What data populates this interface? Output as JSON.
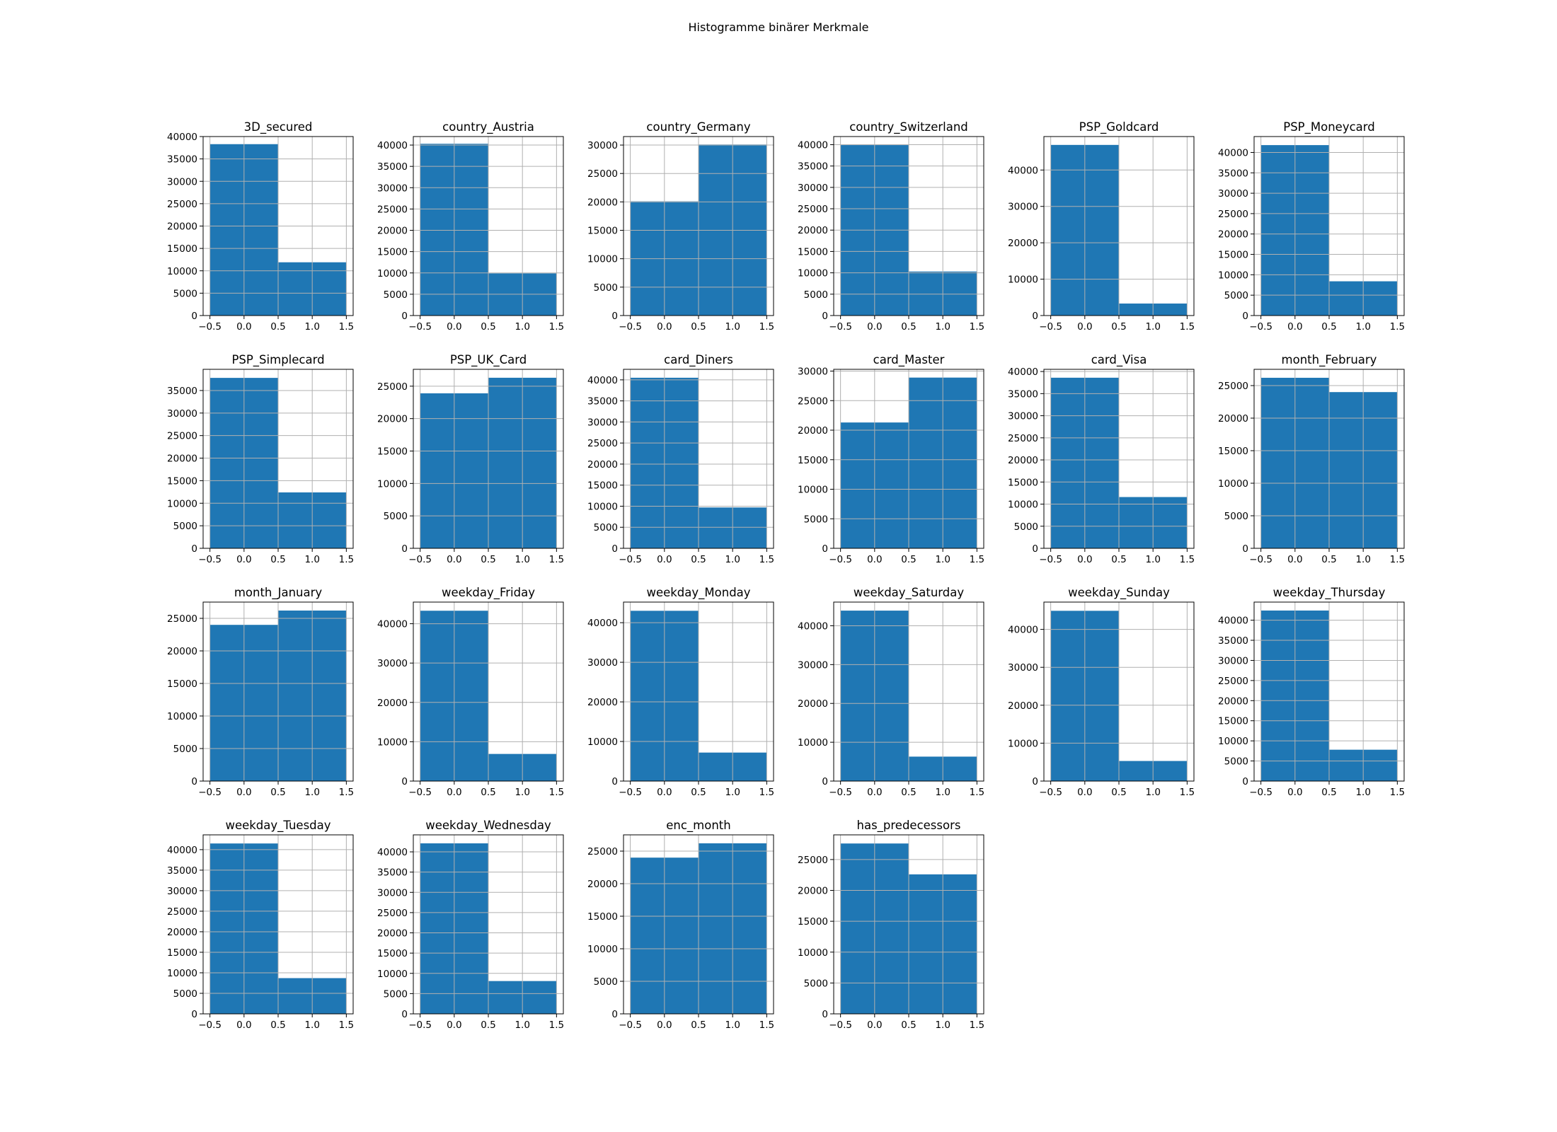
{
  "figure_title": "Histogramme binärer Merkmale",
  "colors": {
    "bar": "#1f77b4",
    "grid": "#b0b0b0",
    "axes": "#000000"
  },
  "chart_data": [
    {
      "type": "bar",
      "title": "3D_secured",
      "bins": [
        [
          -0.5,
          0.5
        ],
        [
          0.5,
          1.5
        ]
      ],
      "values": [
        38300,
        11900
      ],
      "xlim": [
        -0.6,
        1.6
      ],
      "ylim": [
        0,
        40000
      ],
      "xticks": [
        -0.5,
        0.0,
        0.5,
        1.0,
        1.5
      ],
      "xtick_labels": [
        "−0.5",
        "0.0",
        "0.5",
        "1.0",
        "1.5"
      ],
      "yticks": [
        0,
        5000,
        10000,
        15000,
        20000,
        25000,
        30000,
        35000,
        40000
      ],
      "grid": true
    },
    {
      "type": "bar",
      "title": "country_Austria",
      "bins": [
        [
          -0.5,
          0.5
        ],
        [
          0.5,
          1.5
        ]
      ],
      "values": [
        40300,
        9900
      ],
      "xlim": [
        -0.6,
        1.6
      ],
      "ylim": [
        0,
        42000
      ],
      "xticks": [
        -0.5,
        0.0,
        0.5,
        1.0,
        1.5
      ],
      "xtick_labels": [
        "−0.5",
        "0.0",
        "0.5",
        "1.0",
        "1.5"
      ],
      "yticks": [
        0,
        5000,
        10000,
        15000,
        20000,
        25000,
        30000,
        35000,
        40000
      ],
      "grid": true
    },
    {
      "type": "bar",
      "title": "country_Germany",
      "bins": [
        [
          -0.5,
          0.5
        ],
        [
          0.5,
          1.5
        ]
      ],
      "values": [
        20100,
        30100
      ],
      "xlim": [
        -0.6,
        1.6
      ],
      "ylim": [
        0,
        31500
      ],
      "xticks": [
        -0.5,
        0.0,
        0.5,
        1.0,
        1.5
      ],
      "xtick_labels": [
        "−0.5",
        "0.0",
        "0.5",
        "1.0",
        "1.5"
      ],
      "yticks": [
        0,
        5000,
        10000,
        15000,
        20000,
        25000,
        30000
      ],
      "grid": true
    },
    {
      "type": "bar",
      "title": "country_Switzerland",
      "bins": [
        [
          -0.5,
          0.5
        ],
        [
          0.5,
          1.5
        ]
      ],
      "values": [
        39900,
        10300
      ],
      "xlim": [
        -0.6,
        1.6
      ],
      "ylim": [
        0,
        41900
      ],
      "xticks": [
        -0.5,
        0.0,
        0.5,
        1.0,
        1.5
      ],
      "xtick_labels": [
        "−0.5",
        "0.0",
        "0.5",
        "1.0",
        "1.5"
      ],
      "yticks": [
        0,
        5000,
        10000,
        15000,
        20000,
        25000,
        30000,
        35000,
        40000
      ],
      "grid": true
    },
    {
      "type": "bar",
      "title": "PSP_Goldcard",
      "bins": [
        [
          -0.5,
          0.5
        ],
        [
          0.5,
          1.5
        ]
      ],
      "values": [
        46900,
        3300
      ],
      "xlim": [
        -0.6,
        1.6
      ],
      "ylim": [
        0,
        49200
      ],
      "xticks": [
        -0.5,
        0.0,
        0.5,
        1.0,
        1.5
      ],
      "xtick_labels": [
        "−0.5",
        "0.0",
        "0.5",
        "1.0",
        "1.5"
      ],
      "yticks": [
        0,
        10000,
        20000,
        30000,
        40000
      ],
      "grid": true
    },
    {
      "type": "bar",
      "title": "PSP_Moneycard",
      "bins": [
        [
          -0.5,
          0.5
        ],
        [
          0.5,
          1.5
        ]
      ],
      "values": [
        41800,
        8400
      ],
      "xlim": [
        -0.6,
        1.6
      ],
      "ylim": [
        0,
        43900
      ],
      "xticks": [
        -0.5,
        0.0,
        0.5,
        1.0,
        1.5
      ],
      "xtick_labels": [
        "−0.5",
        "0.0",
        "0.5",
        "1.0",
        "1.5"
      ],
      "yticks": [
        0,
        5000,
        10000,
        15000,
        20000,
        25000,
        30000,
        35000,
        40000
      ],
      "grid": true
    },
    {
      "type": "bar",
      "title": "PSP_Simplecard",
      "bins": [
        [
          -0.5,
          0.5
        ],
        [
          0.5,
          1.5
        ]
      ],
      "values": [
        37800,
        12400
      ],
      "xlim": [
        -0.6,
        1.6
      ],
      "ylim": [
        0,
        39700
      ],
      "xticks": [
        -0.5,
        0.0,
        0.5,
        1.0,
        1.5
      ],
      "xtick_labels": [
        "−0.5",
        "0.0",
        "0.5",
        "1.0",
        "1.5"
      ],
      "yticks": [
        0,
        5000,
        10000,
        15000,
        20000,
        25000,
        30000,
        35000
      ],
      "grid": true
    },
    {
      "type": "bar",
      "title": "PSP_UK_Card",
      "bins": [
        [
          -0.5,
          0.5
        ],
        [
          0.5,
          1.5
        ]
      ],
      "values": [
        23900,
        26300
      ],
      "xlim": [
        -0.6,
        1.6
      ],
      "ylim": [
        0,
        27600
      ],
      "xticks": [
        -0.5,
        0.0,
        0.5,
        1.0,
        1.5
      ],
      "xtick_labels": [
        "−0.5",
        "0.0",
        "0.5",
        "1.0",
        "1.5"
      ],
      "yticks": [
        0,
        5000,
        10000,
        15000,
        20000,
        25000
      ],
      "grid": true
    },
    {
      "type": "bar",
      "title": "card_Diners",
      "bins": [
        [
          -0.5,
          0.5
        ],
        [
          0.5,
          1.5
        ]
      ],
      "values": [
        40500,
        9700
      ],
      "xlim": [
        -0.6,
        1.6
      ],
      "ylim": [
        0,
        42500
      ],
      "xticks": [
        -0.5,
        0.0,
        0.5,
        1.0,
        1.5
      ],
      "xtick_labels": [
        "−0.5",
        "0.0",
        "0.5",
        "1.0",
        "1.5"
      ],
      "yticks": [
        0,
        5000,
        10000,
        15000,
        20000,
        25000,
        30000,
        35000,
        40000
      ],
      "grid": true
    },
    {
      "type": "bar",
      "title": "card_Master",
      "bins": [
        [
          -0.5,
          0.5
        ],
        [
          0.5,
          1.5
        ]
      ],
      "values": [
        21300,
        28900
      ],
      "xlim": [
        -0.6,
        1.6
      ],
      "ylim": [
        0,
        30300
      ],
      "xticks": [
        -0.5,
        0.0,
        0.5,
        1.0,
        1.5
      ],
      "xtick_labels": [
        "−0.5",
        "0.0",
        "0.5",
        "1.0",
        "1.5"
      ],
      "yticks": [
        0,
        5000,
        10000,
        15000,
        20000,
        25000,
        30000
      ],
      "grid": true
    },
    {
      "type": "bar",
      "title": "card_Visa",
      "bins": [
        [
          -0.5,
          0.5
        ],
        [
          0.5,
          1.5
        ]
      ],
      "values": [
        38600,
        11600
      ],
      "xlim": [
        -0.6,
        1.6
      ],
      "ylim": [
        0,
        40500
      ],
      "xticks": [
        -0.5,
        0.0,
        0.5,
        1.0,
        1.5
      ],
      "xtick_labels": [
        "−0.5",
        "0.0",
        "0.5",
        "1.0",
        "1.5"
      ],
      "yticks": [
        0,
        5000,
        10000,
        15000,
        20000,
        25000,
        30000,
        35000,
        40000
      ],
      "grid": true
    },
    {
      "type": "bar",
      "title": "month_February",
      "bins": [
        [
          -0.5,
          0.5
        ],
        [
          0.5,
          1.5
        ]
      ],
      "values": [
        26200,
        24000
      ],
      "xlim": [
        -0.6,
        1.6
      ],
      "ylim": [
        0,
        27500
      ],
      "xticks": [
        -0.5,
        0.0,
        0.5,
        1.0,
        1.5
      ],
      "xtick_labels": [
        "−0.5",
        "0.0",
        "0.5",
        "1.0",
        "1.5"
      ],
      "yticks": [
        0,
        5000,
        10000,
        15000,
        20000,
        25000
      ],
      "grid": true
    },
    {
      "type": "bar",
      "title": "month_January",
      "bins": [
        [
          -0.5,
          0.5
        ],
        [
          0.5,
          1.5
        ]
      ],
      "values": [
        24000,
        26200
      ],
      "xlim": [
        -0.6,
        1.6
      ],
      "ylim": [
        0,
        27500
      ],
      "xticks": [
        -0.5,
        0.0,
        0.5,
        1.0,
        1.5
      ],
      "xtick_labels": [
        "−0.5",
        "0.0",
        "0.5",
        "1.0",
        "1.5"
      ],
      "yticks": [
        0,
        5000,
        10000,
        15000,
        20000,
        25000
      ],
      "grid": true
    },
    {
      "type": "bar",
      "title": "weekday_Friday",
      "bins": [
        [
          -0.5,
          0.5
        ],
        [
          0.5,
          1.5
        ]
      ],
      "values": [
        43300,
        6900
      ],
      "xlim": [
        -0.6,
        1.6
      ],
      "ylim": [
        0,
        45500
      ],
      "xticks": [
        -0.5,
        0.0,
        0.5,
        1.0,
        1.5
      ],
      "xtick_labels": [
        "−0.5",
        "0.0",
        "0.5",
        "1.0",
        "1.5"
      ],
      "yticks": [
        0,
        10000,
        20000,
        30000,
        40000
      ],
      "grid": true
    },
    {
      "type": "bar",
      "title": "weekday_Monday",
      "bins": [
        [
          -0.5,
          0.5
        ],
        [
          0.5,
          1.5
        ]
      ],
      "values": [
        43000,
        7200
      ],
      "xlim": [
        -0.6,
        1.6
      ],
      "ylim": [
        0,
        45200
      ],
      "xticks": [
        -0.5,
        0.0,
        0.5,
        1.0,
        1.5
      ],
      "xtick_labels": [
        "−0.5",
        "0.0",
        "0.5",
        "1.0",
        "1.5"
      ],
      "yticks": [
        0,
        10000,
        20000,
        30000,
        40000
      ],
      "grid": true
    },
    {
      "type": "bar",
      "title": "weekday_Saturday",
      "bins": [
        [
          -0.5,
          0.5
        ],
        [
          0.5,
          1.5
        ]
      ],
      "values": [
        43900,
        6300
      ],
      "xlim": [
        -0.6,
        1.6
      ],
      "ylim": [
        0,
        46100
      ],
      "xticks": [
        -0.5,
        0.0,
        0.5,
        1.0,
        1.5
      ],
      "xtick_labels": [
        "−0.5",
        "0.0",
        "0.5",
        "1.0",
        "1.5"
      ],
      "yticks": [
        0,
        10000,
        20000,
        30000,
        40000
      ],
      "grid": true
    },
    {
      "type": "bar",
      "title": "weekday_Sunday",
      "bins": [
        [
          -0.5,
          0.5
        ],
        [
          0.5,
          1.5
        ]
      ],
      "values": [
        44900,
        5300
      ],
      "xlim": [
        -0.6,
        1.6
      ],
      "ylim": [
        0,
        47200
      ],
      "xticks": [
        -0.5,
        0.0,
        0.5,
        1.0,
        1.5
      ],
      "xtick_labels": [
        "−0.5",
        "0.0",
        "0.5",
        "1.0",
        "1.5"
      ],
      "yticks": [
        0,
        10000,
        20000,
        30000,
        40000
      ],
      "grid": true
    },
    {
      "type": "bar",
      "title": "weekday_Thursday",
      "bins": [
        [
          -0.5,
          0.5
        ],
        [
          0.5,
          1.5
        ]
      ],
      "values": [
        42400,
        7800
      ],
      "xlim": [
        -0.6,
        1.6
      ],
      "ylim": [
        0,
        44500
      ],
      "xticks": [
        -0.5,
        0.0,
        0.5,
        1.0,
        1.5
      ],
      "xtick_labels": [
        "−0.5",
        "0.0",
        "0.5",
        "1.0",
        "1.5"
      ],
      "yticks": [
        0,
        5000,
        10000,
        15000,
        20000,
        25000,
        30000,
        35000,
        40000
      ],
      "grid": true
    },
    {
      "type": "bar",
      "title": "weekday_Tuesday",
      "bins": [
        [
          -0.5,
          0.5
        ],
        [
          0.5,
          1.5
        ]
      ],
      "values": [
        41500,
        8700
      ],
      "xlim": [
        -0.6,
        1.6
      ],
      "ylim": [
        0,
        43600
      ],
      "xticks": [
        -0.5,
        0.0,
        0.5,
        1.0,
        1.5
      ],
      "xtick_labels": [
        "−0.5",
        "0.0",
        "0.5",
        "1.0",
        "1.5"
      ],
      "yticks": [
        0,
        5000,
        10000,
        15000,
        20000,
        25000,
        30000,
        35000,
        40000
      ],
      "grid": true
    },
    {
      "type": "bar",
      "title": "weekday_Wednesday",
      "bins": [
        [
          -0.5,
          0.5
        ],
        [
          0.5,
          1.5
        ]
      ],
      "values": [
        42100,
        8100
      ],
      "xlim": [
        -0.6,
        1.6
      ],
      "ylim": [
        0,
        44200
      ],
      "xticks": [
        -0.5,
        0.0,
        0.5,
        1.0,
        1.5
      ],
      "xtick_labels": [
        "−0.5",
        "0.0",
        "0.5",
        "1.0",
        "1.5"
      ],
      "yticks": [
        0,
        5000,
        10000,
        15000,
        20000,
        25000,
        30000,
        35000,
        40000
      ],
      "grid": true
    },
    {
      "type": "bar",
      "title": "enc_month",
      "bins": [
        [
          -0.5,
          0.5
        ],
        [
          0.5,
          1.5
        ]
      ],
      "values": [
        24000,
        26200
      ],
      "xlim": [
        -0.6,
        1.6
      ],
      "ylim": [
        0,
        27500
      ],
      "xticks": [
        -0.5,
        0.0,
        0.5,
        1.0,
        1.5
      ],
      "xtick_labels": [
        "−0.5",
        "0.0",
        "0.5",
        "1.0",
        "1.5"
      ],
      "yticks": [
        0,
        5000,
        10000,
        15000,
        20000,
        25000
      ],
      "grid": true
    },
    {
      "type": "bar",
      "title": "has_predecessors",
      "bins": [
        [
          -0.5,
          0.5
        ],
        [
          0.5,
          1.5
        ]
      ],
      "values": [
        27600,
        22600
      ],
      "xlim": [
        -0.6,
        1.6
      ],
      "ylim": [
        0,
        29000
      ],
      "xticks": [
        -0.5,
        0.0,
        0.5,
        1.0,
        1.5
      ],
      "xtick_labels": [
        "−0.5",
        "0.0",
        "0.5",
        "1.0",
        "1.5"
      ],
      "yticks": [
        0,
        5000,
        10000,
        15000,
        20000,
        25000
      ],
      "grid": true
    }
  ]
}
